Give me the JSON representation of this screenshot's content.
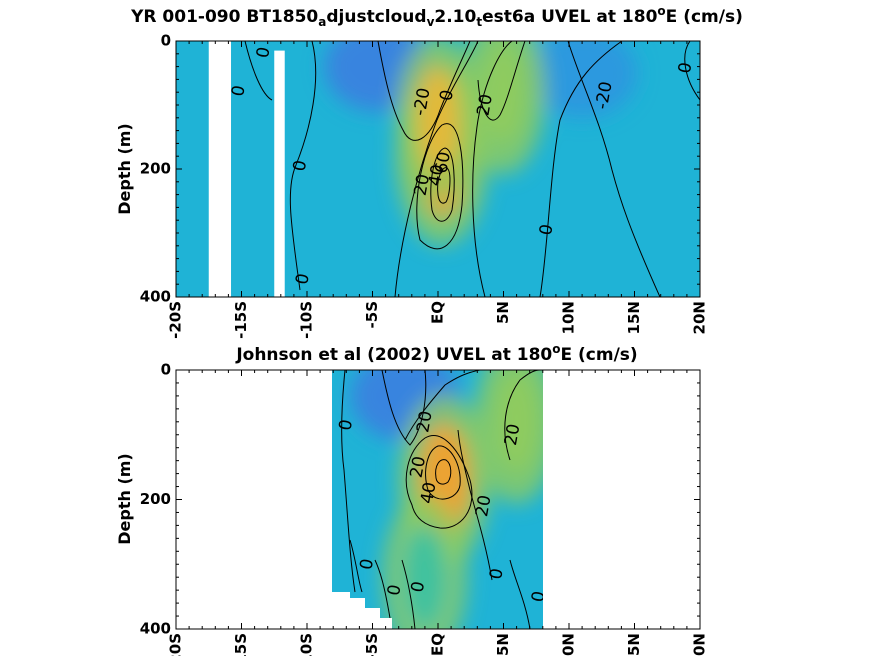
{
  "chart_data": [
    {
      "type": "heatmap",
      "title_parts": [
        "YR 001-090 BT1850",
        "a",
        "djustcloud",
        "v",
        "2.10",
        "t",
        "est6a UVEL at 180",
        "o",
        "E (cm/s)"
      ],
      "xlabel": "",
      "ylabel": "Depth (m)",
      "xlim": [
        -20,
        20
      ],
      "ylim": [
        0,
        400
      ],
      "y_reversed": true,
      "x_ticks": [
        -20,
        -15,
        -10,
        -5,
        0,
        5,
        10,
        15,
        20
      ],
      "x_tick_labels": [
        "-20S",
        "-15S",
        "-10S",
        "-5S",
        "EQ",
        "5N",
        "10N",
        "15N",
        "20N"
      ],
      "y_ticks": [
        0,
        200,
        400
      ],
      "y_tick_labels": [
        "0",
        "200",
        "400"
      ],
      "colormap": [
        "#3b7fe0",
        "#1fb3d6",
        "#3cc2a0",
        "#8fcc5e",
        "#e6b83a",
        "#f2a12e"
      ],
      "cores": [
        {
          "x": 0.3,
          "y": 185,
          "value": 60
        },
        {
          "x": 5.0,
          "y": 80,
          "value": 20
        },
        {
          "x": 0.0,
          "y": 120,
          "value": 30
        }
      ],
      "troughs": [
        {
          "x": -4.5,
          "y": 40,
          "value": -20
        },
        {
          "x": 11.0,
          "y": 50,
          "value": -15
        }
      ],
      "gaps": [
        {
          "x0": -17.5,
          "x1": -15.8,
          "y0": 0,
          "y1": 400
        },
        {
          "x0": -12.5,
          "x1": -11.7,
          "y0": 15,
          "y1": 400
        }
      ],
      "contour_labels": [
        {
          "x": -13.3,
          "y": 18,
          "text": "0"
        },
        {
          "x": -15.2,
          "y": 78,
          "text": "0"
        },
        {
          "x": -10.5,
          "y": 195,
          "text": "0"
        },
        {
          "x": -10.3,
          "y": 372,
          "text": "0"
        },
        {
          "x": -1.2,
          "y": 95,
          "text": "-20"
        },
        {
          "x": 0.7,
          "y": 85,
          "text": "0"
        },
        {
          "x": 3.6,
          "y": 100,
          "text": "20"
        },
        {
          "x": -1.2,
          "y": 225,
          "text": "20"
        },
        {
          "x": -0.1,
          "y": 210,
          "text": "40"
        },
        {
          "x": 0.4,
          "y": 190,
          "text": "60"
        },
        {
          "x": 8.3,
          "y": 295,
          "text": "0"
        },
        {
          "x": 12.7,
          "y": 85,
          "text": "-20"
        },
        {
          "x": 18.9,
          "y": 42,
          "text": "0"
        }
      ]
    },
    {
      "type": "heatmap",
      "title_parts": [
        "Johnson et al (2002) UVEL at 180",
        "o",
        "E (cm/s)"
      ],
      "xlabel": "",
      "ylabel": "Depth (m)",
      "xlim": [
        -20,
        20
      ],
      "ylim": [
        0,
        400
      ],
      "y_reversed": true,
      "x_ticks": [
        -20,
        -15,
        -10,
        -5,
        0,
        5,
        10,
        15,
        20
      ],
      "x_tick_labels": [
        "-20S",
        "-15S",
        "-10S",
        "-5S",
        "EQ",
        "5N",
        "10N",
        "15N",
        "20N"
      ],
      "y_ticks": [
        0,
        200,
        400
      ],
      "y_tick_labels": [
        "0",
        "200",
        "400"
      ],
      "data_extent": {
        "x0": -8.0,
        "x1": 8.0,
        "y0": 0,
        "y1": 400
      },
      "cores": [
        {
          "x": 0.5,
          "y": 170,
          "value": 50
        },
        {
          "x": 6.0,
          "y": 80,
          "value": 15
        },
        {
          "x": -1.0,
          "y": 320,
          "value": 10
        }
      ],
      "troughs": [
        {
          "x": -2.5,
          "y": 40,
          "value": -25
        }
      ],
      "contour_labels": [
        {
          "x": -7.0,
          "y": 85,
          "text": "0"
        },
        {
          "x": -1.0,
          "y": 80,
          "text": "20"
        },
        {
          "x": -1.5,
          "y": 150,
          "text": "20"
        },
        {
          "x": -0.7,
          "y": 190,
          "text": "40"
        },
        {
          "x": 3.5,
          "y": 210,
          "text": "20"
        },
        {
          "x": 5.7,
          "y": 100,
          "text": "20"
        },
        {
          "x": -5.4,
          "y": 300,
          "text": "0"
        },
        {
          "x": -3.3,
          "y": 340,
          "text": "0"
        },
        {
          "x": -1.5,
          "y": 335,
          "text": "0"
        },
        {
          "x": 4.5,
          "y": 315,
          "text": "0"
        },
        {
          "x": 7.7,
          "y": 350,
          "text": "0"
        }
      ]
    }
  ]
}
